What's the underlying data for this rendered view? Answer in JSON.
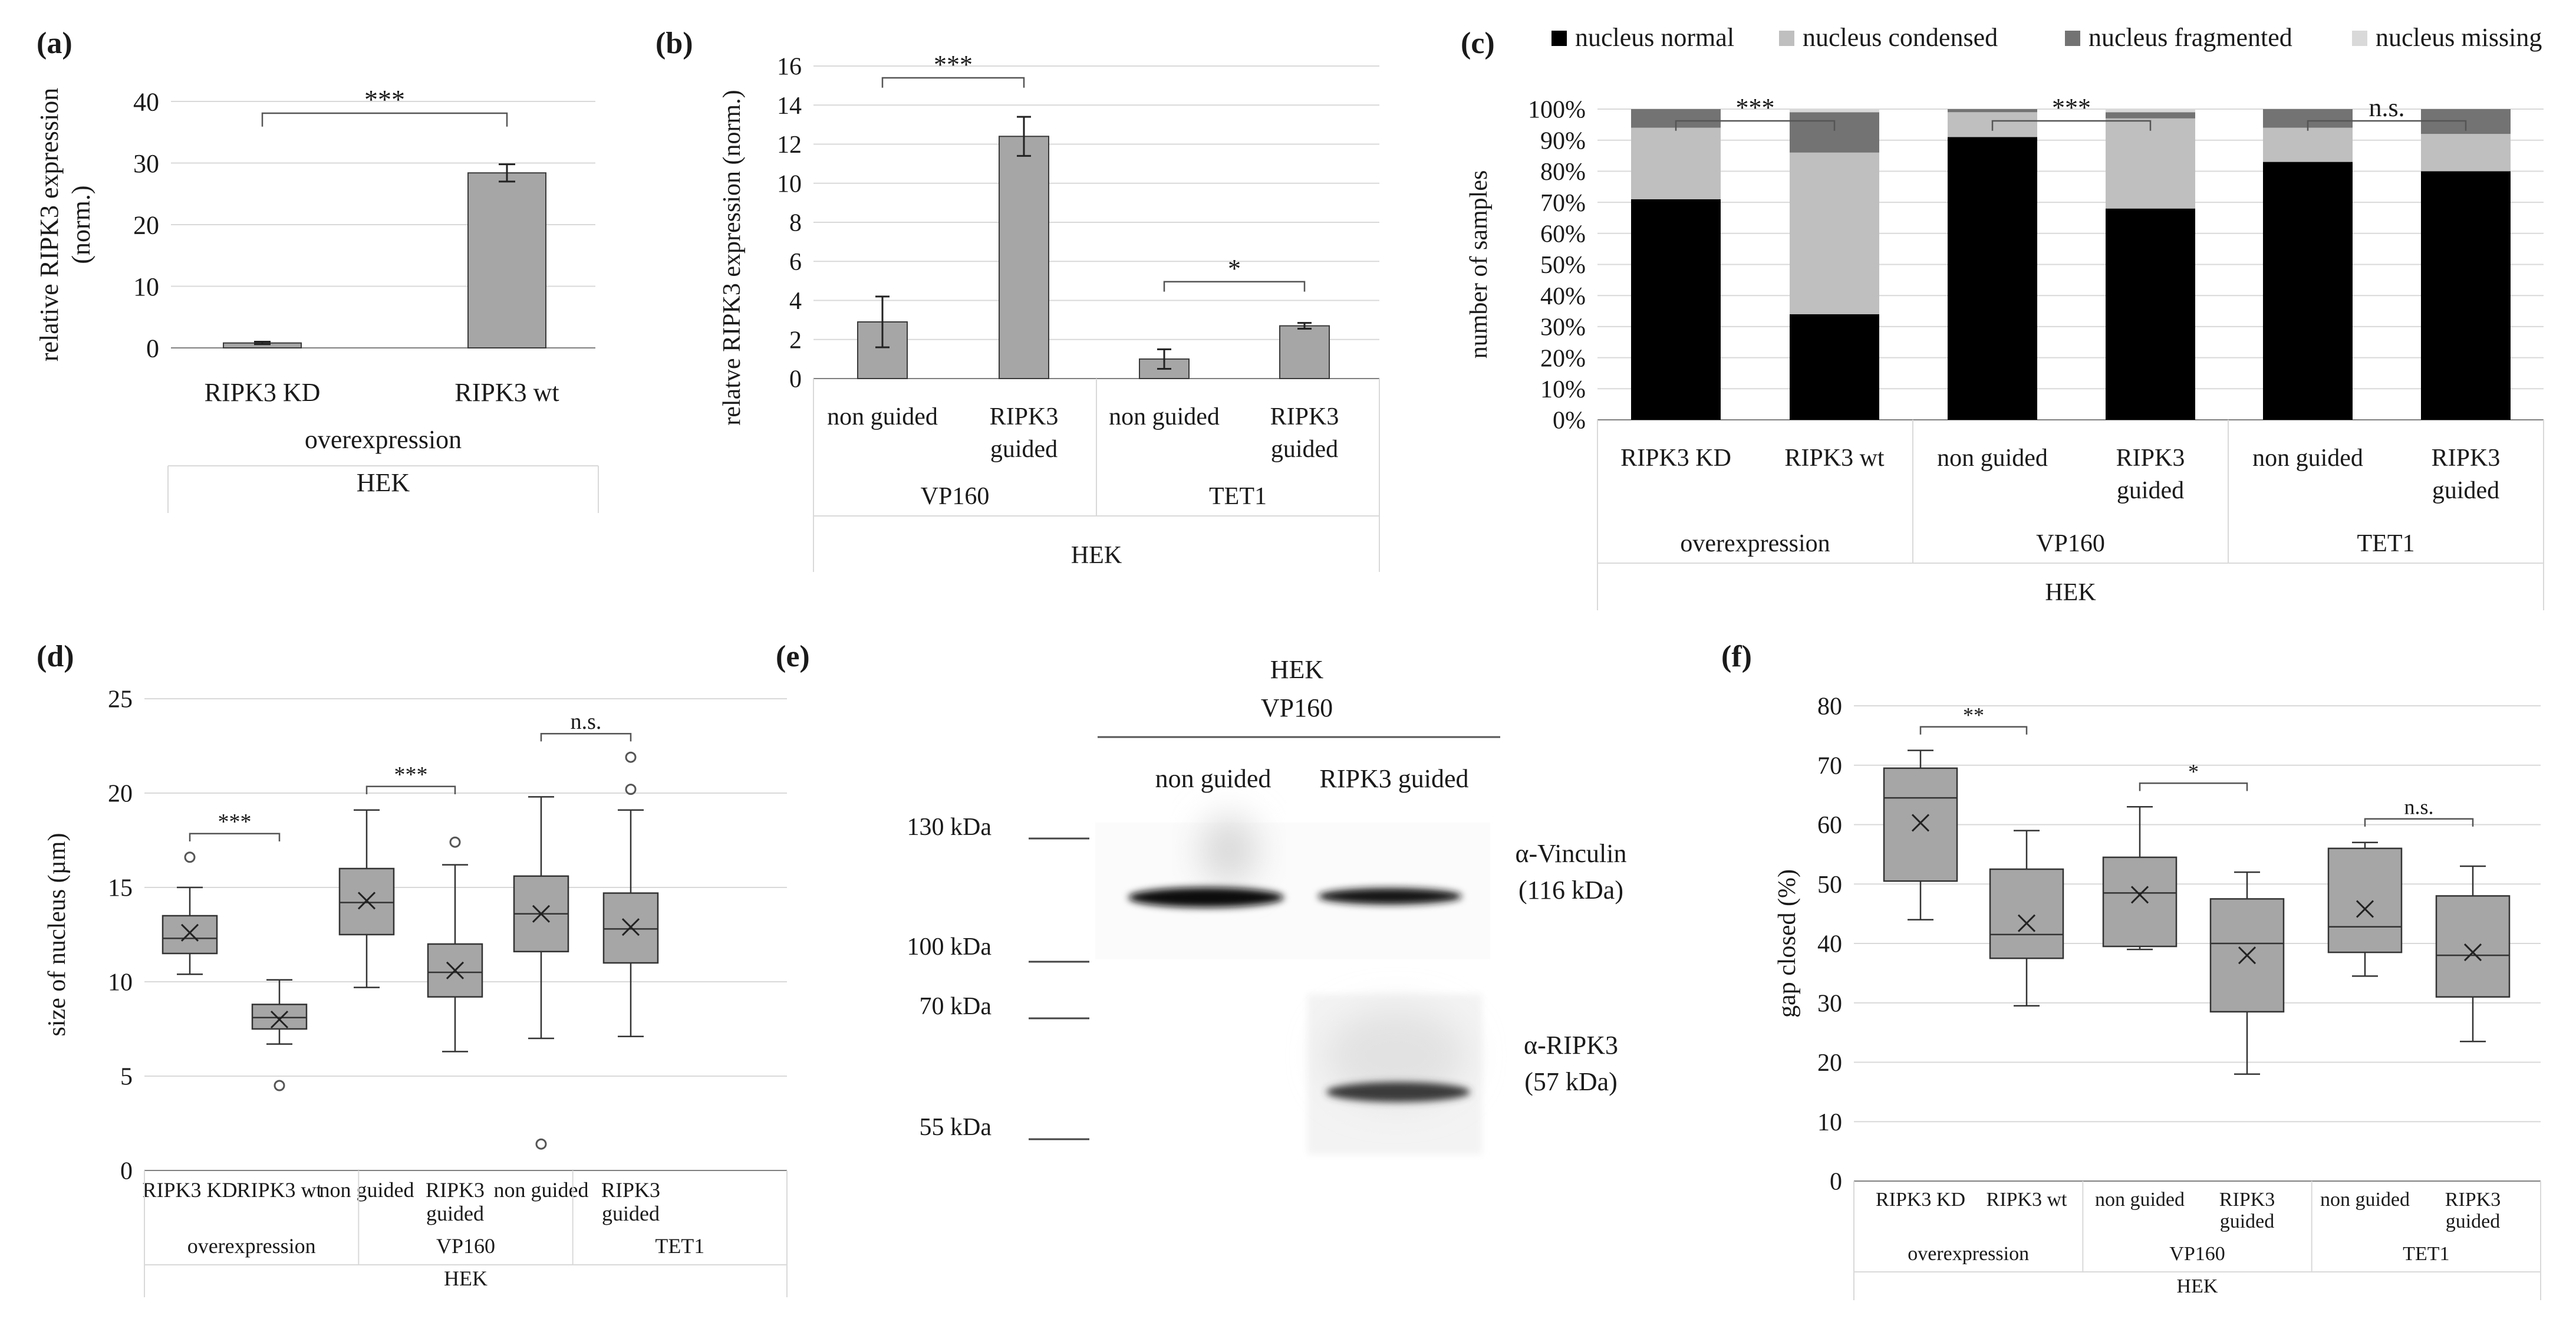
{
  "figure": {
    "background": "#ffffff",
    "bar_color": "#a6a6a6",
    "axis_color": "#808080",
    "grid_color": "#d9d9d9"
  },
  "chart_data": [
    {
      "id": "a",
      "panel_label": "(a)",
      "type": "bar",
      "categories": [
        "RIPK3 KD",
        "RIPK3 wt"
      ],
      "values": [
        0.8,
        28.4
      ],
      "errors": [
        0.2,
        1.4
      ],
      "ylabel_lines": [
        "relative RIPK3 expression",
        "(norm.)"
      ],
      "ylim": [
        0,
        40
      ],
      "yticks": [
        0,
        10,
        20,
        30,
        40
      ],
      "ytick_labels": [
        "0",
        "10",
        "20",
        "30",
        "40"
      ],
      "groups": [
        {
          "label": "overexpression",
          "span": [
            0,
            1
          ]
        }
      ],
      "outer_group": "HEK",
      "significance": [
        {
          "from": 0,
          "to": 1,
          "label": "***"
        }
      ]
    },
    {
      "id": "b",
      "panel_label": "(b)",
      "type": "bar",
      "categories": [
        "non guided",
        "RIPK3 guided",
        "non guided",
        "RIPK3 guided"
      ],
      "values": [
        2.9,
        12.4,
        1.0,
        2.7
      ],
      "errors": [
        1.3,
        1.0,
        0.5,
        0.15
      ],
      "ylabel": "relatve RIPK3 expression (norm.)",
      "ylim": [
        0,
        16
      ],
      "yticks": [
        0,
        2,
        4,
        6,
        8,
        10,
        12,
        14,
        16
      ],
      "ytick_labels": [
        "0",
        "2",
        "4",
        "6",
        "8",
        "10",
        "12",
        "14",
        "16"
      ],
      "groups": [
        {
          "label": "VP160",
          "span": [
            0,
            1
          ]
        },
        {
          "label": "TET1",
          "span": [
            2,
            3
          ]
        }
      ],
      "outer_group": "HEK",
      "significance": [
        {
          "from": 0,
          "to": 1,
          "label": "***"
        },
        {
          "from": 2,
          "to": 3,
          "label": "*"
        }
      ]
    },
    {
      "id": "c",
      "panel_label": "(c)",
      "type": "stacked_bar",
      "categories": [
        "RIPK3 KD",
        "RIPK3 wt",
        "non guided",
        "RIPK3 guided",
        "non guided",
        "RIPK3 guided"
      ],
      "series": [
        {
          "name": "nucleus normal",
          "color": "#000000",
          "values": [
            71,
            34,
            91,
            68,
            83,
            80
          ]
        },
        {
          "name": "nucleus condensed",
          "color": "#bfbfbf",
          "values": [
            23,
            52,
            8,
            29,
            11,
            12
          ]
        },
        {
          "name": "nucleus fragmented",
          "color": "#737373",
          "values": [
            6,
            13,
            1,
            2,
            6,
            8
          ]
        },
        {
          "name": "nucleus missing",
          "color": "#d9d9d9",
          "values": [
            0,
            1,
            0,
            1,
            0,
            0
          ]
        }
      ],
      "ylabel": "number of samples",
      "ylim": [
        0,
        100
      ],
      "yticks": [
        0,
        10,
        20,
        30,
        40,
        50,
        60,
        70,
        80,
        90,
        100
      ],
      "ytick_labels": [
        "0%",
        "10%",
        "20%",
        "30%",
        "40%",
        "50%",
        "60%",
        "70%",
        "80%",
        "90%",
        "100%"
      ],
      "groups": [
        {
          "label": "overexpression",
          "span": [
            0,
            1
          ]
        },
        {
          "label": "VP160",
          "span": [
            2,
            3
          ]
        },
        {
          "label": "TET1",
          "span": [
            4,
            5
          ]
        }
      ],
      "outer_group": "HEK",
      "legend_position": "top",
      "significance": [
        {
          "from": 0,
          "to": 1,
          "label": "***"
        },
        {
          "from": 2,
          "to": 3,
          "label": "***"
        },
        {
          "from": 4,
          "to": 5,
          "label": "n.s."
        }
      ]
    },
    {
      "id": "d",
      "panel_label": "(d)",
      "type": "box",
      "categories": [
        "RIPK3 KD",
        "RIPK3 wt",
        "non guided",
        "RIPK3 guided",
        "non guided",
        "RIPK3 guided"
      ],
      "boxes": [
        {
          "whisker_low": 10.4,
          "q1": 11.5,
          "median": 12.3,
          "q3": 13.5,
          "whisker_high": 15.0,
          "mean": 12.6,
          "outliers": [
            16.6
          ]
        },
        {
          "whisker_low": 6.7,
          "q1": 7.5,
          "median": 8.1,
          "q3": 8.8,
          "whisker_high": 10.1,
          "mean": 8.0,
          "outliers": [
            4.5
          ]
        },
        {
          "whisker_low": 9.7,
          "q1": 12.5,
          "median": 14.2,
          "q3": 16.0,
          "whisker_high": 19.1,
          "mean": 14.3,
          "outliers": []
        },
        {
          "whisker_low": 6.3,
          "q1": 9.2,
          "median": 10.5,
          "q3": 12.0,
          "whisker_high": 16.2,
          "mean": 10.6,
          "outliers": [
            17.4
          ]
        },
        {
          "whisker_low": 7.0,
          "q1": 11.6,
          "median": 13.6,
          "q3": 15.6,
          "whisker_high": 19.8,
          "mean": 13.6,
          "outliers": [
            1.4
          ]
        },
        {
          "whisker_low": 7.1,
          "q1": 11.0,
          "median": 12.8,
          "q3": 14.7,
          "whisker_high": 19.1,
          "mean": 12.9,
          "outliers": [
            20.2,
            21.9
          ]
        }
      ],
      "ylabel": "size of nucleus (µm)",
      "ylim": [
        0,
        25
      ],
      "yticks": [
        0,
        5,
        10,
        15,
        20,
        25
      ],
      "ytick_labels": [
        "0",
        "5",
        "10",
        "15",
        "20",
        "25"
      ],
      "groups": [
        {
          "label": "overexpression",
          "span": [
            0,
            1
          ]
        },
        {
          "label": "VP160",
          "span": [
            2,
            3
          ]
        },
        {
          "label": "TET1",
          "span": [
            4,
            5
          ]
        }
      ],
      "outer_group": "HEK",
      "significance": [
        {
          "from": 0,
          "to": 1,
          "label": "***"
        },
        {
          "from": 2,
          "to": 3,
          "label": "***"
        },
        {
          "from": 4,
          "to": 5,
          "label": "n.s."
        }
      ]
    },
    {
      "id": "f",
      "panel_label": "(f)",
      "type": "box",
      "categories": [
        "RIPK3 KD",
        "RIPK3 wt",
        "non guided",
        "RIPK3 guided",
        "non guided",
        "RIPK3 guided"
      ],
      "boxes": [
        {
          "whisker_low": 44.0,
          "q1": 50.5,
          "median": 64.5,
          "q3": 69.5,
          "whisker_high": 72.5,
          "mean": 60.3,
          "outliers": []
        },
        {
          "whisker_low": 29.5,
          "q1": 37.5,
          "median": 41.5,
          "q3": 52.5,
          "whisker_high": 59.0,
          "mean": 43.4,
          "outliers": []
        },
        {
          "whisker_low": 39.0,
          "q1": 39.5,
          "median": 48.5,
          "q3": 54.5,
          "whisker_high": 63.0,
          "mean": 48.2,
          "outliers": []
        },
        {
          "whisker_low": 18.0,
          "q1": 28.5,
          "median": 40.0,
          "q3": 47.5,
          "whisker_high": 52.0,
          "mean": 38.0,
          "outliers": []
        },
        {
          "whisker_low": 34.5,
          "q1": 38.5,
          "median": 42.8,
          "q3": 56.0,
          "whisker_high": 57.0,
          "mean": 45.8,
          "outliers": []
        },
        {
          "whisker_low": 23.5,
          "q1": 31.0,
          "median": 38.0,
          "q3": 48.0,
          "whisker_high": 53.0,
          "mean": 38.5,
          "outliers": []
        }
      ],
      "ylabel": "gap closed (%)",
      "ylim": [
        0,
        80
      ],
      "yticks": [
        0,
        10,
        20,
        30,
        40,
        50,
        60,
        70,
        80
      ],
      "ytick_labels": [
        "0",
        "10",
        "20",
        "30",
        "40",
        "50",
        "60",
        "70",
        "80"
      ],
      "groups": [
        {
          "label": "overexpression",
          "span": [
            0,
            1
          ]
        },
        {
          "label": "VP160",
          "span": [
            2,
            3
          ]
        },
        {
          "label": "TET1",
          "span": [
            4,
            5
          ]
        }
      ],
      "outer_group": "HEK",
      "significance": [
        {
          "from": 0,
          "to": 1,
          "label": "**"
        },
        {
          "from": 2,
          "to": 3,
          "label": "*"
        },
        {
          "from": 4,
          "to": 5,
          "label": "n.s."
        }
      ]
    }
  ],
  "blot": {
    "panel_label": "(e)",
    "header_top": "HEK",
    "header_sub": "VP160",
    "lanes": [
      "non guided",
      "RIPK3 guided"
    ],
    "markers": [
      "130 kDa",
      "100 kDa",
      "70 kDa",
      "55 kDa"
    ],
    "bands": [
      {
        "label": "α-Vinculin",
        "size": "(116 kDa)"
      },
      {
        "label": "α-RIPK3",
        "size": "(57 kDa)"
      }
    ]
  }
}
